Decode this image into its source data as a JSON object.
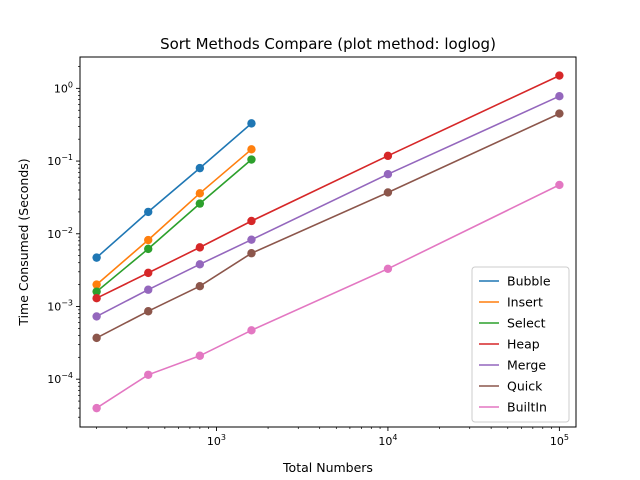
{
  "chart_data": {
    "type": "line",
    "title": "Sort Methods Compare (plot method: loglog)",
    "xlabel": "Total Numbers",
    "ylabel": "Time Consumed (Seconds)",
    "xscale": "log",
    "yscale": "log",
    "xlim": [
      160,
      125000
    ],
    "ylim": [
      2.2e-05,
      2.7
    ],
    "x_ticks": [
      {
        "value": 1000,
        "base": "10",
        "exp": "3"
      },
      {
        "value": 10000,
        "base": "10",
        "exp": "4"
      },
      {
        "value": 100000,
        "base": "10",
        "exp": "5"
      }
    ],
    "y_ticks": [
      {
        "value": 0.0001,
        "base": "10",
        "exp": "−4"
      },
      {
        "value": 0.001,
        "base": "10",
        "exp": "−3"
      },
      {
        "value": 0.01,
        "base": "10",
        "exp": "−2"
      },
      {
        "value": 0.1,
        "base": "10",
        "exp": "−1"
      },
      {
        "value": 1,
        "base": "10",
        "exp": "0"
      }
    ],
    "grid": false,
    "legend_position": "lower right",
    "series": [
      {
        "name": "Bubble",
        "color": "#1f77b4",
        "x": [
          200,
          400,
          800,
          1600
        ],
        "values": [
          0.0047,
          0.02,
          0.08,
          0.33
        ]
      },
      {
        "name": "Insert",
        "color": "#ff7f0e",
        "x": [
          200,
          400,
          800,
          1600
        ],
        "values": [
          0.002,
          0.0082,
          0.036,
          0.145
        ]
      },
      {
        "name": "Select",
        "color": "#2ca02c",
        "x": [
          200,
          400,
          800,
          1600
        ],
        "values": [
          0.0016,
          0.0062,
          0.026,
          0.105
        ]
      },
      {
        "name": "Heap",
        "color": "#d62728",
        "x": [
          200,
          400,
          800,
          1600,
          10000,
          100000
        ],
        "values": [
          0.0013,
          0.0029,
          0.0065,
          0.015,
          0.118,
          1.5
        ]
      },
      {
        "name": "Merge",
        "color": "#9467bd",
        "x": [
          200,
          400,
          800,
          1600,
          10000,
          100000
        ],
        "values": [
          0.00073,
          0.0017,
          0.0038,
          0.0083,
          0.066,
          0.78
        ]
      },
      {
        "name": "Quick",
        "color": "#8c564b",
        "x": [
          200,
          400,
          800,
          1600,
          10000,
          100000
        ],
        "values": [
          0.00037,
          0.00086,
          0.0019,
          0.0054,
          0.037,
          0.45
        ]
      },
      {
        "name": "BuiltIn",
        "color": "#e377c2",
        "x": [
          200,
          400,
          800,
          1600,
          10000,
          100000
        ],
        "values": [
          4e-05,
          0.000115,
          0.00021,
          0.00047,
          0.0033,
          0.047
        ]
      }
    ]
  }
}
